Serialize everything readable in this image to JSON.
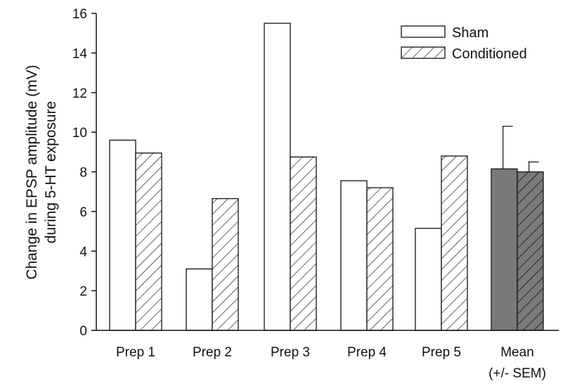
{
  "chart_data": {
    "type": "bar",
    "categories": [
      "Prep 1",
      "Prep 2",
      "Prep 3",
      "Prep 4",
      "Prep 5",
      "Mean"
    ],
    "category_sublabels": [
      "",
      "",
      "",
      "",
      "",
      "(+/- SEM)"
    ],
    "series": [
      {
        "name": "Sham",
        "values": [
          9.6,
          3.1,
          15.5,
          7.55,
          5.15,
          8.15
        ],
        "error": [
          null,
          null,
          null,
          null,
          null,
          2.15
        ]
      },
      {
        "name": "Conditioned",
        "values": [
          8.95,
          6.65,
          8.75,
          7.2,
          8.8,
          8.0
        ],
        "error": [
          null,
          null,
          null,
          null,
          null,
          0.5
        ]
      }
    ],
    "ylabel_line1": "Change in EPSP amplitude (mV)",
    "ylabel_line2": "during 5-HT exposure",
    "ylim": [
      0,
      16
    ],
    "yticks": [
      0,
      2,
      4,
      6,
      8,
      10,
      12,
      14,
      16
    ],
    "yticks_labels": [
      "0",
      "2",
      "4",
      "6",
      "8",
      "10",
      "12",
      "14",
      "16"
    ],
    "legend_position": "top-right",
    "mean_bar_fill": "#7a7a7a",
    "grid": false
  }
}
